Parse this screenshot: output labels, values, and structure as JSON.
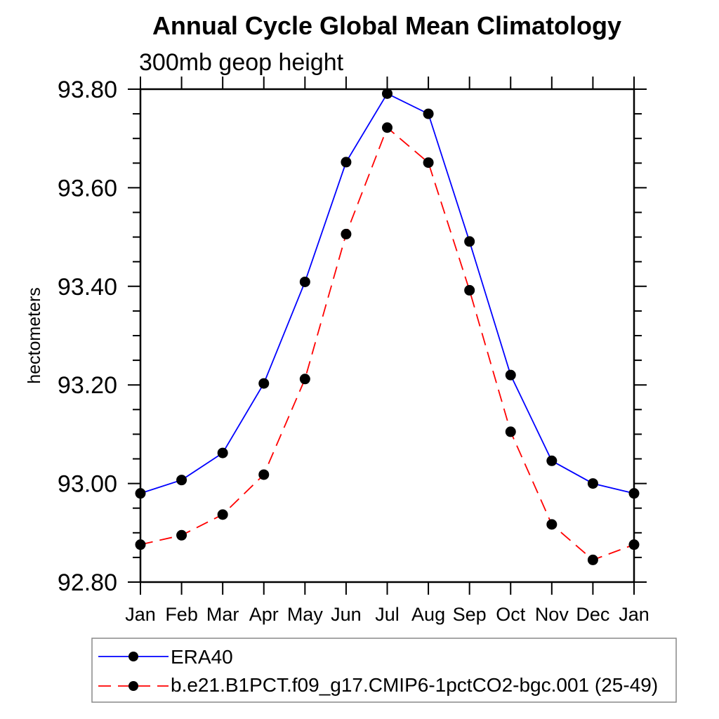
{
  "chart_data": {
    "type": "line",
    "title": "Annual Cycle Global Mean Climatology",
    "subtitle": "300mb geop height",
    "ylabel": "hectometers",
    "categories": [
      "Jan",
      "Feb",
      "Mar",
      "Apr",
      "May",
      "Jun",
      "Jul",
      "Aug",
      "Sep",
      "Oct",
      "Nov",
      "Dec",
      "Jan"
    ],
    "ylim": [
      92.8,
      93.8
    ],
    "yticks_major": {
      "values": [
        92.8,
        93.0,
        93.2,
        93.4,
        93.6,
        93.8
      ],
      "labels": [
        "92.80",
        "93.00",
        "93.20",
        "93.40",
        "93.60",
        "93.80"
      ]
    },
    "ytick_minor_step": 0.05,
    "grid": false,
    "legend_position": "below-plot-left",
    "series": [
      {
        "name": "ERA40",
        "color": "#0000ff",
        "line_style": "solid",
        "marker": "filled-circle",
        "marker_color": "#000000",
        "values": [
          92.98,
          93.007,
          93.062,
          93.203,
          93.409,
          93.652,
          93.791,
          93.75,
          93.491,
          93.22,
          93.046,
          93.0,
          92.98
        ]
      },
      {
        "name": "b.e21.B1PCT.f09_g17.CMIP6-1pctCO2-bgc.001 (25-49)",
        "color": "#ff0000",
        "line_style": "dashed",
        "marker": "filled-circle",
        "marker_color": "#000000",
        "values": [
          92.876,
          92.895,
          92.937,
          93.018,
          93.212,
          93.506,
          93.722,
          93.651,
          93.392,
          93.105,
          92.917,
          92.845,
          92.876
        ]
      }
    ],
    "axis_color": "#000000",
    "legend_border_color": "#888888"
  }
}
